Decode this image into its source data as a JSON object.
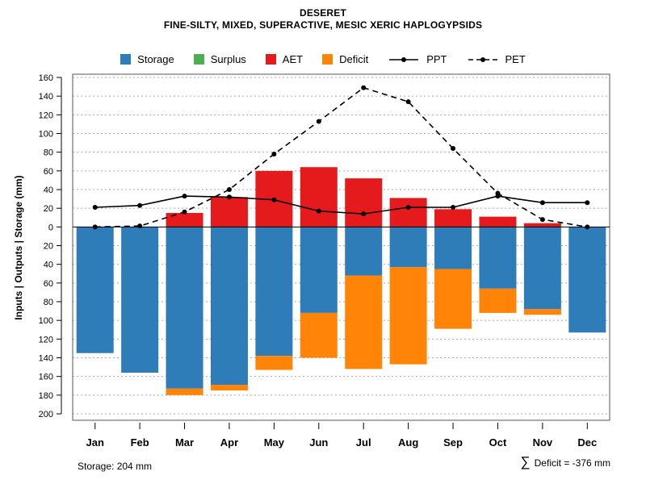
{
  "title": "DESERET",
  "subtitle": "FINE-SILTY, MIXED, SUPERACTIVE, MESIC XERIC HAPLOGYPSIDS",
  "footer": {
    "storage_label": "Storage: 204 mm",
    "sum_symbol": "∑",
    "deficit_label": "Deficit = -376 mm"
  },
  "chart_data": {
    "type": "bar",
    "title": "DESERET",
    "subtitle": "FINE-SILTY, MIXED, SUPERACTIVE, MESIC XERIC HAPLOGYPSIDS",
    "xlabel": "",
    "ylabel": "Inputs | Outputs | Storage    (mm)",
    "categories": [
      "Jan",
      "Feb",
      "Mar",
      "Apr",
      "May",
      "Jun",
      "Jul",
      "Aug",
      "Sep",
      "Oct",
      "Nov",
      "Dec"
    ],
    "y_axis": {
      "up_max": 160,
      "down_max": 200,
      "tick_step": 20,
      "tick_labels_absolute": true
    },
    "grid": "dashed-horizontal",
    "legend_position": "top",
    "legend": [
      {
        "label": "Storage",
        "swatch": "square",
        "color": "#2e7cb8"
      },
      {
        "label": "Surplus",
        "swatch": "square",
        "color": "#4caf50"
      },
      {
        "label": "AET",
        "swatch": "square",
        "color": "#e41a1c"
      },
      {
        "label": "Deficit",
        "swatch": "square",
        "color": "#ff8408"
      },
      {
        "label": "PPT",
        "swatch": "line-solid",
        "color": "#000000"
      },
      {
        "label": "PET",
        "swatch": "line-dashed",
        "color": "#000000"
      }
    ],
    "series": [
      {
        "name": "AET",
        "type": "bar",
        "direction": "up",
        "color": "#e41a1c",
        "values": [
          0,
          0,
          15,
          32,
          60,
          64,
          52,
          31,
          19,
          11,
          4,
          0
        ]
      },
      {
        "name": "Surplus",
        "type": "bar",
        "direction": "up",
        "color": "#4caf50",
        "values": [
          0,
          0,
          0,
          0,
          0,
          0,
          0,
          0,
          0,
          0,
          0,
          0
        ]
      },
      {
        "name": "Storage",
        "type": "bar",
        "direction": "down",
        "color": "#2e7cb8",
        "values": [
          135,
          156,
          173,
          169,
          138,
          92,
          52,
          43,
          45,
          66,
          88,
          113
        ]
      },
      {
        "name": "Deficit",
        "type": "bar",
        "direction": "down",
        "color": "#ff8408",
        "values": [
          0,
          0,
          7,
          6,
          15,
          48,
          100,
          104,
          64,
          26,
          6,
          0
        ]
      },
      {
        "name": "PPT",
        "type": "line",
        "style": "solid",
        "color": "#000000",
        "values": [
          21,
          23,
          33,
          32,
          29,
          17,
          14,
          21,
          21,
          33,
          26,
          26
        ]
      },
      {
        "name": "PET",
        "type": "line",
        "style": "dashed",
        "color": "#000000",
        "values": [
          0,
          1,
          16,
          40,
          78,
          113,
          149,
          134,
          84,
          36,
          8,
          0
        ]
      }
    ],
    "totals": {
      "storage_mm": 204,
      "deficit_sum_mm": -376
    }
  }
}
